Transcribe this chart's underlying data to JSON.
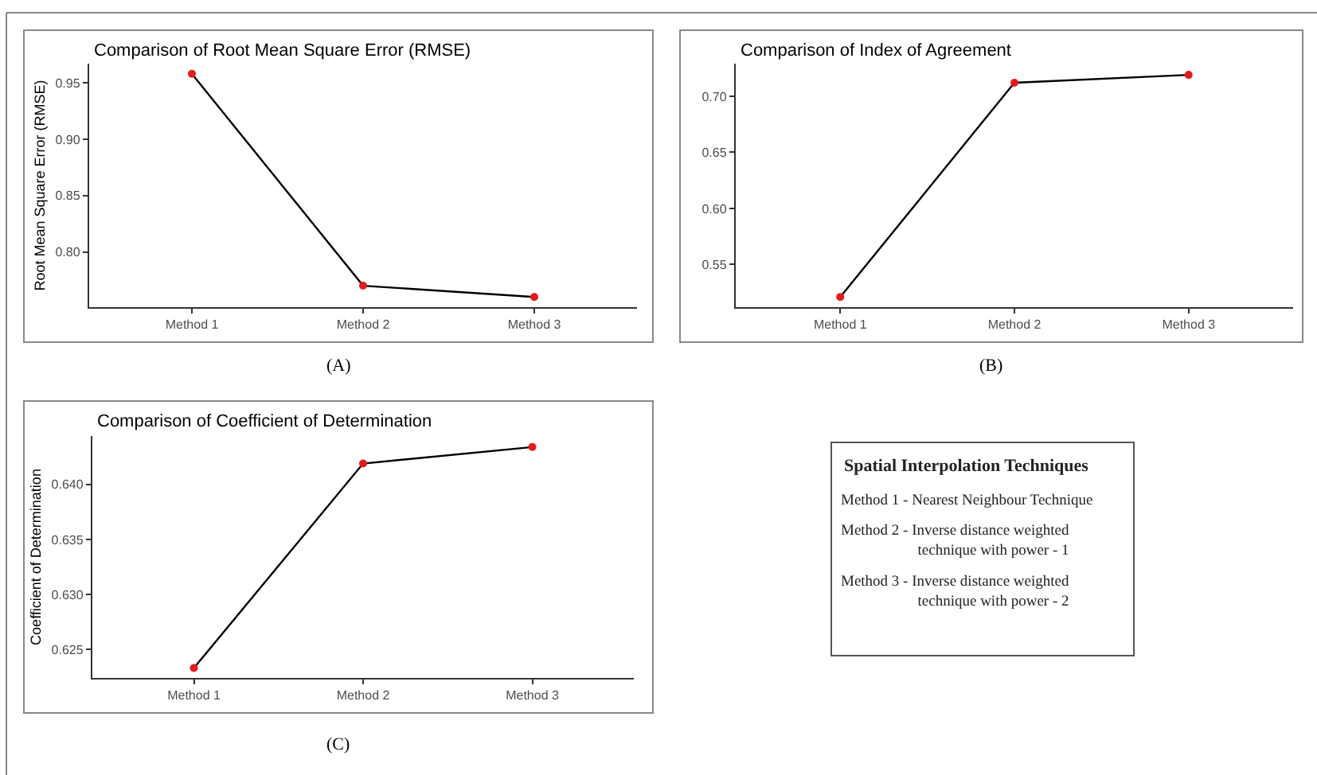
{
  "chart_data": [
    {
      "type": "line",
      "title": "Comparison of Root Mean Square Error (RMSE)",
      "ylabel": "Root Mean Square Error (RMSE)",
      "categories": [
        "Method 1",
        "Method 2",
        "Method 3"
      ],
      "series": [
        {
          "color": "#000000",
          "colors": [
            "#e41a1c",
            "#e41a1c",
            "#e41a1c"
          ],
          "values": [
            0.958,
            0.77,
            0.76
          ]
        }
      ],
      "ylim": [
        0.751,
        0.967
      ],
      "yticks": [
        {
          "value": 0.8,
          "label": "0.80"
        },
        0.85,
        {
          "value": 0.9,
          "label": "0.90"
        },
        0.95
      ],
      "marker": "circle",
      "line_style": "solid",
      "grid": false,
      "annotations": [
        "(A)"
      ]
    },
    {
      "type": "line",
      "title": "Comparison of Index of Agreement",
      "categories": [
        "Method 1",
        "Method 2",
        "Method 3"
      ],
      "series": [
        {
          "color": "#000000",
          "colors": [
            "#e41a1c",
            "#e41a1c",
            "#e41a1c"
          ],
          "values": [
            0.521,
            0.712,
            0.719
          ]
        }
      ],
      "ylim": [
        0.512,
        0.729
      ],
      "yticks": [
        0.55,
        {
          "value": 0.6,
          "label": "0.60"
        },
        0.65,
        {
          "value": 0.7,
          "label": "0.70"
        }
      ],
      "marker": "circle",
      "line_style": "solid",
      "grid": false,
      "annotations": [
        "(B)"
      ]
    },
    {
      "type": "line",
      "title": "Comparison of Coefficient of Determination",
      "ylabel": "Coefficient of Determination",
      "categories": [
        "Method 1",
        "Method 2",
        "Method 3"
      ],
      "series": [
        {
          "color": "#000000",
          "colors": [
            "#e41a1c",
            "#e41a1c",
            "#e41a1c"
          ],
          "values": [
            0.6233,
            0.6419,
            0.6434
          ]
        }
      ],
      "ylim": [
        0.6224,
        0.6444
      ],
      "yticks": [
        0.625,
        {
          "value": 0.63,
          "label": "0.630"
        },
        0.635,
        {
          "value": 0.64,
          "label": "0.640"
        }
      ],
      "marker": "circle",
      "line_style": "solid",
      "grid": false,
      "annotations": [
        "(C)"
      ]
    },
    {
      "type": "other",
      "title": "Spatial Interpolation Techniques",
      "annotations": [
        "Method 1 - Nearest Neighbour Technique",
        "Method 2 - Inverse distance weighted technique with power - 1",
        "Method 3 - Inverse distance weighted technique with power - 2"
      ]
    }
  ]
}
